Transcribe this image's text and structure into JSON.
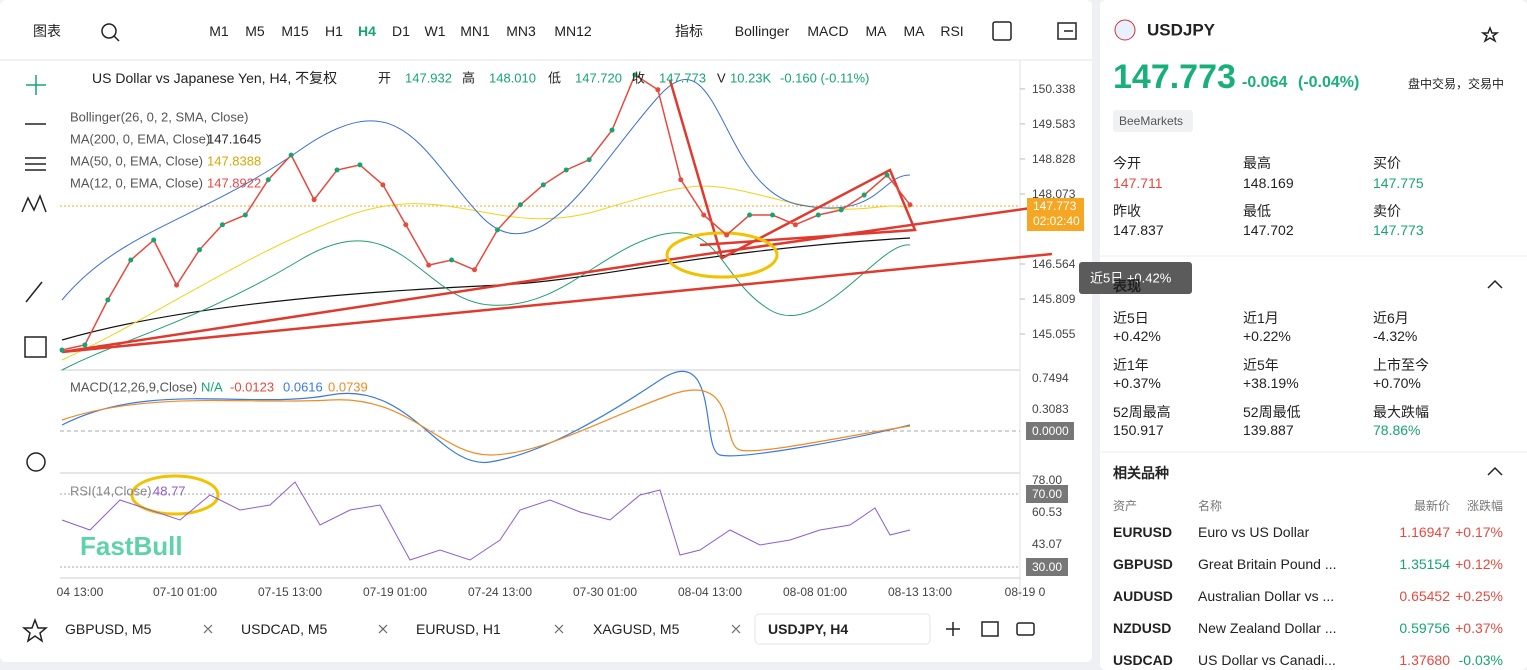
{
  "toolbar": {
    "chart_menu": "图表",
    "intervals": [
      "M1",
      "M5",
      "M15",
      "H1",
      "H4",
      "D1",
      "W1",
      "MN1",
      "MN3",
      "MN12"
    ],
    "indicators_menu": "指标",
    "studies": [
      "Bollinger",
      "MACD",
      "MA",
      "MA",
      "RSI"
    ]
  },
  "legend": {
    "title": "US Dollar vs Japanese Yen, H4, 不复权",
    "ohlc": [
      {
        "label": "开",
        "value": "147.932"
      },
      {
        "label": "高",
        "value": "148.010"
      },
      {
        "label": "低",
        "value": "147.720"
      },
      {
        "label": "收",
        "value": "147.773"
      },
      {
        "label": "V",
        "value": "10.23K"
      }
    ],
    "change": "-0.160 (-0.11%)",
    "studies": [
      {
        "name": "Bollinger(26, 0, 2, SMA, Close)"
      },
      {
        "name": "MA(200, 0, EMA, Close)",
        "value": "147.1645"
      },
      {
        "name": "MA(50, 0, EMA, Close)",
        "value": "147.8388"
      },
      {
        "name": "MA(12, 0, EMA, Close)",
        "value": "147.8922"
      }
    ]
  },
  "price_chart": {
    "close": [
      144.71,
      144.82,
      145.79,
      146.65,
      147.08,
      146.11,
      146.87,
      147.41,
      147.62,
      148.38,
      148.91,
      147.95,
      148.59,
      148.7,
      148.27,
      147.41,
      146.54,
      146.65,
      146.44,
      147.3,
      147.84,
      148.27,
      148.59,
      148.81,
      149.45,
      150.64,
      150.32,
      148.38,
      147.62,
      147.19,
      147.62,
      147.62,
      147.41,
      147.62,
      147.73,
      148.05,
      148.48,
      147.84
    ],
    "ylim": [
      144.28,
      150.96
    ],
    "yticks": [
      150.338,
      149.583,
      148.828,
      148.073,
      146.564,
      145.809,
      145.055
    ],
    "time_labels": [
      "04 13:00",
      "07-10 01:00",
      "07-15 13:00",
      "07-19 01:00",
      "07-24 13:00",
      "07-30 01:00",
      "08-04 13:00",
      "08-08 01:00",
      "08-13 13:00",
      "08-19 0"
    ],
    "last_price": "147.773",
    "countdown": "02:02:40"
  },
  "macd": {
    "label": "MACD(12,26,9,Close)",
    "values": [
      "N/A",
      "-0.0123",
      "0.0616",
      "0.0739"
    ],
    "ticks": [
      "0.7494",
      "0.3083",
      "0.0000"
    ]
  },
  "rsi": {
    "label": "RSI(14,Close)",
    "value": "48.77",
    "ticks": [
      "78.00",
      "70.00",
      "60.53",
      "43.07",
      "30.00"
    ]
  },
  "watermark": "FastBull",
  "tooltip": "近5日 +0.42%",
  "tabs": [
    "GBPUSD, M5",
    "USDCAD, M5",
    "EURUSD, H1",
    "XAGUSD, M5",
    "USDJPY, H4"
  ],
  "quote": {
    "symbol": "USDJPY",
    "price": "147.773",
    "change": "-0.064",
    "change_pct": "(-0.04%)",
    "status": "盘中交易，交易中",
    "broker": "BeeMarkets",
    "stats": [
      {
        "label": "今开",
        "value": "147.711"
      },
      {
        "label": "最高",
        "value": "148.169"
      },
      {
        "label": "买价",
        "value": "147.775"
      },
      {
        "label": "昨收",
        "value": "147.837"
      },
      {
        "label": "最低",
        "value": "147.702"
      },
      {
        "label": "卖价",
        "value": "147.773"
      }
    ],
    "performance_title": "表现",
    "performance": [
      {
        "label": "近5日",
        "value": "+0.42%"
      },
      {
        "label": "近1月",
        "value": "+0.22%"
      },
      {
        "label": "近6月",
        "value": "-4.32%"
      },
      {
        "label": "近1年",
        "value": "+0.37%"
      },
      {
        "label": "近5年",
        "value": "+38.19%"
      },
      {
        "label": "上市至今",
        "value": "+0.70%"
      },
      {
        "label": "52周最高",
        "value": "150.917"
      },
      {
        "label": "52周最低",
        "value": "139.887"
      },
      {
        "label": "最大跌幅",
        "value": "78.86%"
      }
    ],
    "related_title": "相关品种",
    "related_headers": [
      "资产",
      "名称",
      "最新价",
      "涨跌幅"
    ],
    "related": [
      [
        "EURUSD",
        "Euro vs US Dollar",
        "1.16947",
        "+0.17%"
      ],
      [
        "GBPUSD",
        "Great Britain Pound ...",
        "1.35154",
        "+0.12%"
      ],
      [
        "AUDUSD",
        "Australian Dollar vs ...",
        "0.65452",
        "+0.25%"
      ],
      [
        "NZDUSD",
        "New Zealand Dollar ...",
        "0.59756",
        "+0.37%"
      ],
      [
        "USDCAD",
        "US Dollar vs Canadi...",
        "1.37680",
        "-0.03%"
      ]
    ]
  }
}
